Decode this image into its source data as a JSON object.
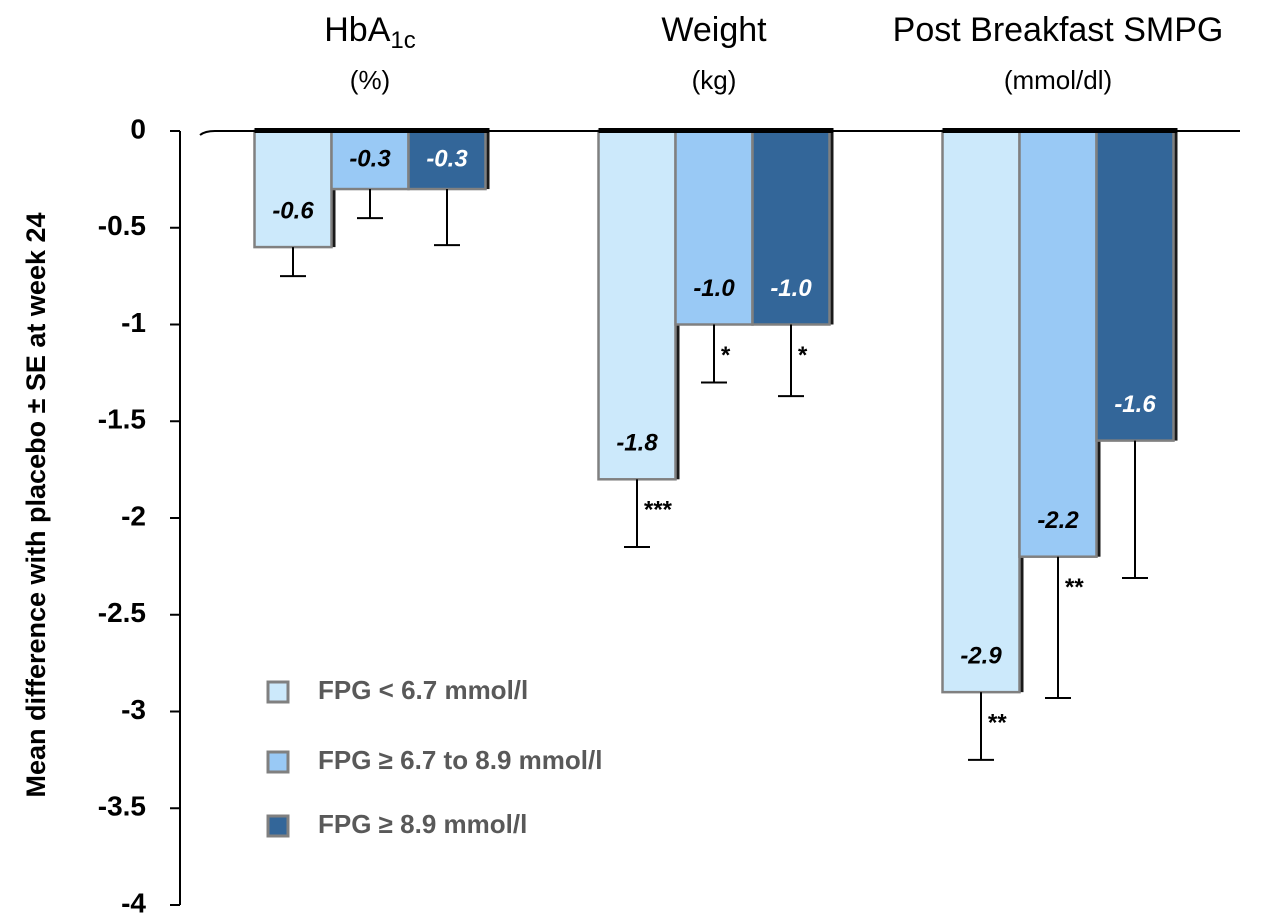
{
  "chart_data": {
    "type": "bar",
    "y_label": "Mean difference with placebo  ± SE at week 24",
    "categories": [
      "HbA1c",
      "Weight",
      "Post Breakfast SMPG"
    ],
    "category_subscripts": [
      "1c",
      null,
      null
    ],
    "category_units": [
      "(%)",
      "(kg)",
      "(mmol/dl)"
    ],
    "ylim": [
      -4,
      0
    ],
    "yticks": [
      0,
      -0.5,
      -1,
      -1.5,
      -2,
      -2.5,
      -3,
      -3.5,
      -4
    ],
    "legend": "bottom-left",
    "series": [
      {
        "name": "FPG < 6.7 mmol/l",
        "color": "#cce9fb",
        "label_color": "#000000",
        "values": [
          -0.6,
          -1.8,
          -2.9
        ],
        "value_labels": [
          "-0.6",
          "-1.8",
          "-2.9"
        ],
        "errors": [
          0.15,
          0.35,
          0.35
        ],
        "significance": [
          null,
          "***",
          "**"
        ]
      },
      {
        "name": "FPG ≥ 6.7 to 8.9 mmol/l",
        "color": "#99c9f5",
        "label_color": "#000000",
        "values": [
          -0.3,
          -1.0,
          -2.2
        ],
        "value_labels": [
          "-0.3",
          "-1.0",
          "-2.2"
        ],
        "errors": [
          0.15,
          0.3,
          0.73
        ],
        "significance": [
          null,
          "*",
          "**"
        ]
      },
      {
        "name": "FPG ≥ 8.9 mmol/l",
        "color": "#336699",
        "label_color": "#ffffff",
        "values": [
          -0.3,
          -1.0,
          -1.6
        ],
        "value_labels": [
          "-0.3",
          "-1.0",
          "-1.6"
        ],
        "errors": [
          0.29,
          0.37,
          0.71
        ],
        "significance": [
          null,
          "*",
          null
        ]
      }
    ]
  }
}
